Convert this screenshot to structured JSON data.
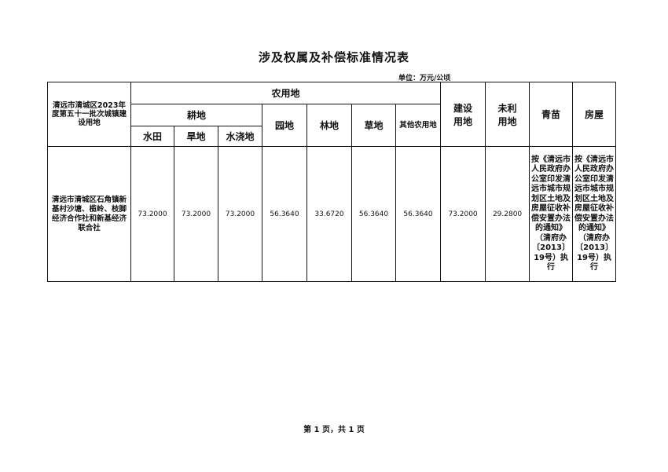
{
  "title": "涉及权属及补偿标准情况表",
  "unit": "单位：万元/公顷",
  "header": {
    "project": "清远市清城区2023年度第五十一批次城镇建设用地",
    "agricultural": "农用地",
    "cultivated": "耕地",
    "paddy": "水田",
    "dry": "旱地",
    "irrigated": "水浇地",
    "garden": "园地",
    "forest": "林地",
    "grass": "草地",
    "other_agri": "其他农用地",
    "construction": "建设用地",
    "unused": "未利用地",
    "crops": "青苗",
    "houses": "房屋"
  },
  "row": {
    "owner": "清远市清城区石角镇新基村沙塘、榄岭、枝脚经济合作社和新基经济联合社",
    "paddy": "73.2000",
    "dry": "73.2000",
    "irrigated": "73.2000",
    "garden": "56.3640",
    "forest": "33.6720",
    "grass": "56.3640",
    "other_agri": "56.3640",
    "construction": "73.2000",
    "unused": "29.2800",
    "crops": "按《清远市人民政府办公室印发清远市城市规划区土地及房屋征收补偿安置办法的通知》（清府办〔2013〕19号）执行",
    "houses": "按《清远市人民政府办公室印发清远市城市规划区土地及房屋征收补偿安置办法的通知》（清府办〔2013〕19号）执行"
  },
  "footer": "第 1 页，共 1 页"
}
